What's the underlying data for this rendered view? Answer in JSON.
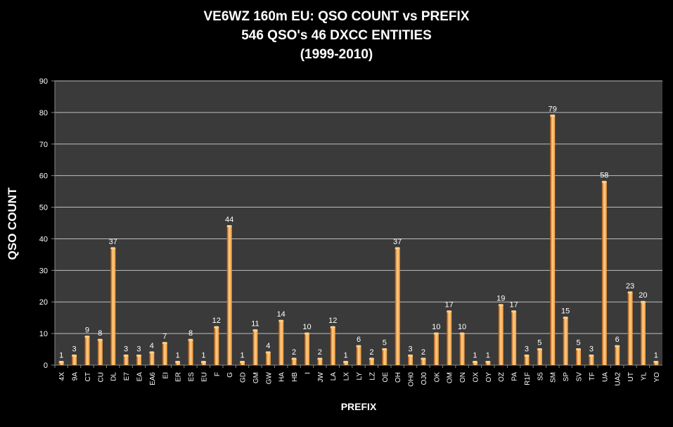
{
  "chart_data": {
    "type": "bar",
    "title_lines": [
      "VE6WZ 160m EU: QSO COUNT vs PREFIX",
      "546 QSO's 46 DXCC ENTITIES",
      "(1999-2010)"
    ],
    "xlabel": "PREFIX",
    "ylabel": "QSO COUNT",
    "ylim": [
      0,
      90
    ],
    "yticks": [
      0,
      10,
      20,
      30,
      40,
      50,
      60,
      70,
      80,
      90
    ],
    "grid": true,
    "legend": "none",
    "categories": [
      "4X",
      "9A",
      "CT",
      "CU",
      "DL",
      "E7",
      "EA",
      "EA6",
      "EI",
      "ER",
      "ES",
      "EU",
      "F",
      "G",
      "GD",
      "GM",
      "GW",
      "HA",
      "HB",
      "I",
      "JW",
      "LA",
      "LX",
      "LY",
      "LZ",
      "OE",
      "OH",
      "OH0",
      "OJ0",
      "OK",
      "OM",
      "ON",
      "OX",
      "OY",
      "OZ",
      "PA",
      "R1F",
      "S5",
      "SM",
      "SP",
      "SV",
      "TF",
      "UA",
      "UA2",
      "UT",
      "YL",
      "YO"
    ],
    "values": [
      1,
      3,
      9,
      8,
      37,
      3,
      3,
      4,
      7,
      1,
      8,
      1,
      12,
      44,
      1,
      11,
      4,
      14,
      2,
      10,
      2,
      12,
      1,
      6,
      2,
      5,
      37,
      3,
      2,
      10,
      17,
      10,
      1,
      1,
      19,
      17,
      3,
      5,
      79,
      15,
      5,
      3,
      58,
      6,
      23,
      20,
      1
    ],
    "colors": {
      "background": "#000000",
      "plot_background": "#3a3a3a",
      "gridline": "#bdbdbd",
      "bar_light": "#ffd08a",
      "bar_mid": "#f59a34",
      "bar_dark": "#a8500a",
      "text": "#ffffff"
    }
  }
}
